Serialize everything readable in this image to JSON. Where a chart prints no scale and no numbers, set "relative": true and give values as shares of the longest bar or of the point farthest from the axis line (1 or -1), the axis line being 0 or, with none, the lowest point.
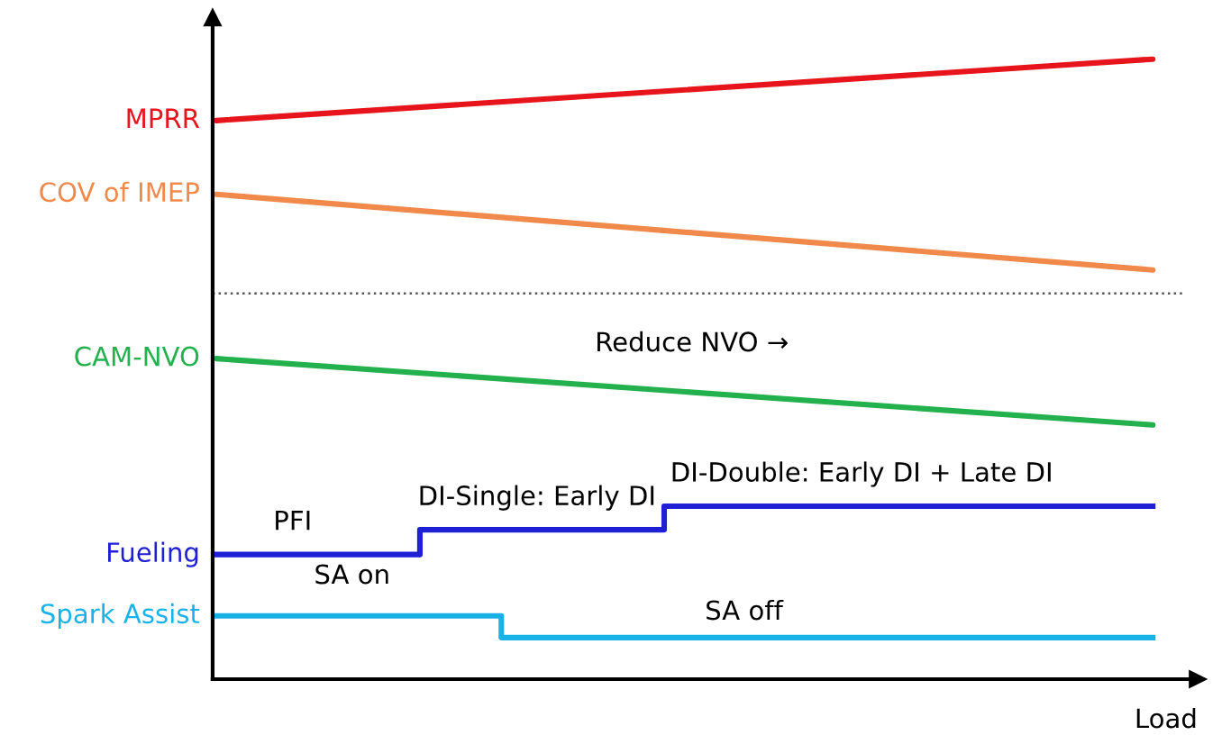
{
  "chart_data": {
    "type": "line",
    "relative": true,
    "xlabel": "Load",
    "grid": false,
    "categories": [
      null,
      null,
      null,
      null,
      null,
      null,
      null,
      null,
      null,
      null,
      null,
      null,
      null,
      null,
      null,
      null,
      null,
      null,
      null,
      null,
      null,
      null,
      null,
      null
    ],
    "series": [
      {
        "name": "MPRR",
        "color": "#e8141c",
        "values": [
          0.901,
          null,
          null,
          null,
          null,
          null,
          null,
          null,
          null,
          null,
          null,
          null,
          null,
          null,
          null,
          null,
          null,
          null,
          null,
          null,
          null,
          null,
          null,
          1.0
        ]
      },
      {
        "name": "COV of IMEP",
        "color": "#f0894a",
        "values": [
          0.782,
          null,
          null,
          null,
          null,
          null,
          null,
          null,
          null,
          null,
          null,
          null,
          null,
          null,
          null,
          null,
          null,
          null,
          null,
          null,
          null,
          null,
          null,
          0.66
        ]
      },
      {
        "name": "CAM-NVO",
        "color": "#22b14c",
        "values": [
          0.517,
          null,
          null,
          null,
          null,
          null,
          null,
          null,
          null,
          null,
          null,
          null,
          null,
          null,
          null,
          null,
          null,
          null,
          null,
          null,
          null,
          null,
          null,
          0.41
        ]
      },
      {
        "name": "Fueling",
        "color": "#1f1fd6",
        "type": "step",
        "values": [
          0.201,
          0.201,
          0.201,
          0.201,
          0.201,
          0.241,
          0.241,
          0.241,
          0.241,
          0.241,
          0.241,
          0.279,
          0.279,
          0.279,
          0.279,
          0.279,
          0.279,
          0.279,
          0.279,
          0.279,
          0.279,
          0.279,
          0.279,
          0.279
        ]
      },
      {
        "name": "Spark Assist",
        "color": "#19b2e8",
        "type": "step",
        "values": [
          0.102,
          0.102,
          0.102,
          0.102,
          0.102,
          0.102,
          0.102,
          0.067,
          0.067,
          0.067,
          0.067,
          0.067,
          0.067,
          0.067,
          0.067,
          0.067,
          0.067,
          0.067,
          0.067,
          0.067,
          0.067,
          0.067,
          0.067,
          0.067
        ]
      }
    ],
    "ref_lines": [
      {
        "axis": "y",
        "value": 0.622,
        "color": "#555555",
        "line_style": "dotted"
      }
    ],
    "annotations": [
      "Reduce NVO →",
      "PFI",
      "DI-Single: Early DI",
      "DI-Double: Early DI + Late DI",
      "SA on",
      "SA off"
    ]
  }
}
